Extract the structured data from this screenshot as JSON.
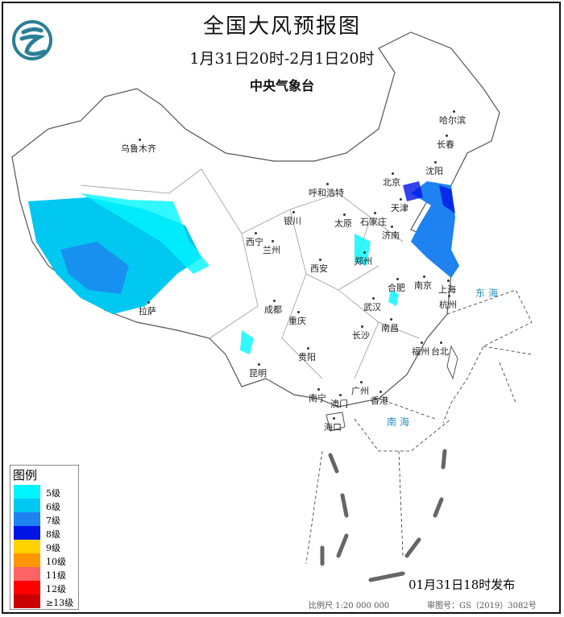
{
  "title": "全国大风预报图",
  "period": "1月31日20时-2月1日20时",
  "issuer": "中央气象台",
  "logo": "cma-dragon-logo",
  "cities": [
    "乌鲁木齐",
    "哈尔滨",
    "长春",
    "沈阳",
    "北京",
    "天津",
    "呼和浩特",
    "石家庄",
    "太原",
    "济南",
    "银川",
    "西宁",
    "兰州",
    "郑州",
    "西安",
    "合肥",
    "南京",
    "上海",
    "拉萨",
    "成都",
    "武汉",
    "杭州",
    "重庆",
    "长沙",
    "南昌",
    "福州",
    "台北",
    "贵阳",
    "昆明",
    "南宁",
    "广州",
    "澳门",
    "香港",
    "海口"
  ],
  "seas": [
    "东海",
    "南海"
  ],
  "legend": {
    "title": "图例",
    "items": [
      {
        "label": "5级",
        "color": "#00f5ff"
      },
      {
        "label": "6级",
        "color": "#00c8f0"
      },
      {
        "label": "7级",
        "color": "#1e82f0"
      },
      {
        "label": "8级",
        "color": "#0014e6"
      },
      {
        "label": "9级",
        "color": "#ffd200"
      },
      {
        "label": "10级",
        "color": "#ff9600"
      },
      {
        "label": "11级",
        "color": "#ff6464"
      },
      {
        "label": "12级",
        "color": "#ff0000"
      },
      {
        "label": "≥13级",
        "color": "#c80000"
      }
    ]
  },
  "issue_time": "01月31日18时发布",
  "scale": "比例尺 1:20 000 000",
  "review_no": "审图号：GS（2019）3082号"
}
